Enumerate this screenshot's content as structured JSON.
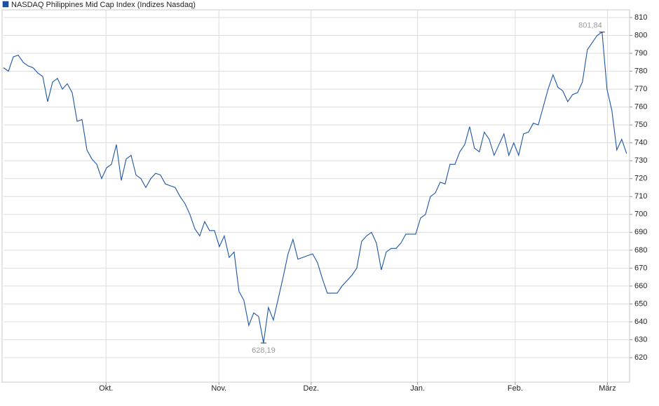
{
  "chart_data": {
    "type": "line",
    "series": [
      {
        "name": "NASDAQ Philippines Mid Cap Index  (Indizes Nasdaq)",
        "color": "#1c54a4",
        "values": [
          782,
          780,
          788,
          789,
          785,
          783,
          782,
          779,
          777,
          763,
          774,
          776,
          770,
          773,
          768,
          752,
          753,
          736,
          731,
          728,
          720,
          726,
          728,
          739,
          719,
          731,
          733,
          722,
          720,
          715,
          720,
          723,
          722,
          717,
          716,
          715,
          710,
          706,
          700,
          692,
          688,
          696,
          691,
          691,
          682,
          688,
          676,
          679,
          657,
          652,
          638,
          645,
          643,
          628.19,
          648,
          641,
          653,
          665,
          678,
          686,
          675,
          676,
          677,
          678,
          673,
          664,
          656,
          656,
          656,
          660,
          663,
          666,
          670,
          685,
          688,
          690,
          684,
          669,
          679,
          681,
          681,
          684,
          689,
          689,
          689,
          698,
          700,
          710,
          712,
          718,
          717,
          728,
          728,
          735,
          739,
          749,
          737,
          735,
          746,
          742,
          733,
          739,
          745,
          733,
          740,
          733,
          745,
          746,
          751,
          750,
          760,
          770,
          778,
          771,
          769,
          763,
          767,
          768,
          774,
          792,
          796,
          800,
          801.84,
          770,
          758,
          736,
          742,
          734
        ]
      }
    ],
    "xlim": [
      0,
      127.6
    ],
    "xticks": [
      {
        "value": 20.9,
        "label": "Okt."
      },
      {
        "value": 43.9,
        "label": "Nov."
      },
      {
        "value": 62.7,
        "label": "Dez."
      },
      {
        "value": 84.4,
        "label": "Jan."
      },
      {
        "value": 104.3,
        "label": "Feb."
      },
      {
        "value": 123.1,
        "label": "März"
      }
    ],
    "ylim": [
      606.3,
      814.3
    ],
    "yticks": [
      620,
      630,
      640,
      650,
      660,
      670,
      680,
      690,
      700,
      710,
      720,
      730,
      740,
      750,
      760,
      770,
      780,
      790,
      800,
      810
    ],
    "grid": true,
    "annotations": [
      {
        "x": 122,
        "value": 801.84,
        "label": "801,84"
      },
      {
        "x": 53,
        "value": 628.19,
        "label": "628,19"
      }
    ]
  }
}
